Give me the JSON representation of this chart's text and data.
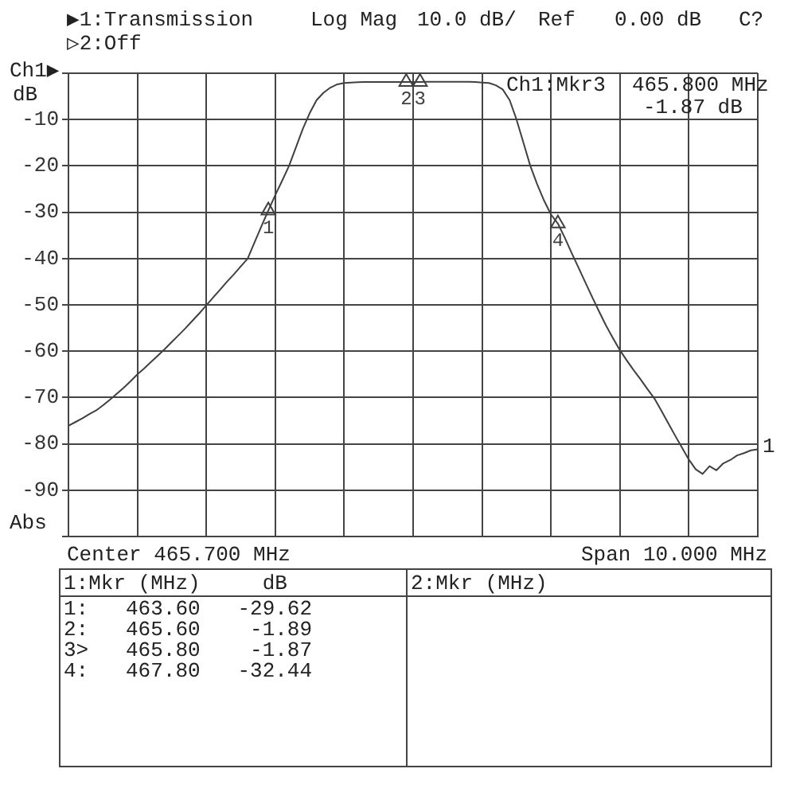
{
  "chart_data": {
    "type": "line",
    "annotations": [
      "▶1:Transmission",
      "Log Mag",
      "10.0 dB/",
      "Ref",
      "0.00 dB",
      "C?",
      "▷2:Off",
      "Ch1▶",
      "dB",
      "Ch1:Mkr3",
      "465.800 MHz",
      "-1.87 dB",
      "1",
      "Abs",
      "Center 465.700 MHz",
      "Span 10.000 MHz",
      "1:Mkr (MHz)     dB",
      "2:Mkr (MHz)",
      "1:   463.60   -29.62",
      "2:   465.60    -1.89",
      "3>   465.80    -1.87",
      "4:   467.80   -32.44"
    ],
    "categories": [
      null,
      null,
      null,
      null,
      null,
      null,
      null,
      null,
      null,
      null,
      null,
      null,
      null,
      null,
      null,
      null,
      null,
      null,
      null,
      null,
      null,
      null,
      null,
      null,
      null,
      null,
      null,
      null,
      null,
      null,
      null,
      null,
      null,
      null,
      null,
      null,
      null,
      null,
      null,
      null,
      null,
      null,
      null,
      null,
      null,
      null,
      null,
      null,
      null,
      null,
      null,
      null,
      null,
      null,
      null,
      null,
      null,
      null,
      null,
      null,
      null,
      null,
      null,
      null,
      null,
      null,
      null,
      null,
      null,
      null,
      null,
      null,
      null,
      null,
      null,
      null,
      null,
      null,
      null,
      null,
      null,
      null,
      null,
      null,
      null,
      null,
      null,
      null,
      null,
      null,
      null,
      null,
      null,
      null,
      null,
      null,
      null,
      null,
      null,
      null,
      null
    ],
    "ylim": [
      -100,
      0
    ],
    "yticks": [
      {
        "value": -100,
        "label": null
      },
      -90,
      -80,
      -70,
      -60,
      -50,
      -40,
      -30,
      -20,
      -10,
      {
        "value": 0,
        "label": null
      }
    ],
    "grid": true,
    "legend": false,
    "series": [
      {
        "color": "#404040",
        "line_style": "solid",
        "values": [
          -76.1,
          -75.3,
          -74.5,
          -73.6,
          -72.8,
          -71.7,
          -70.5,
          -69.2,
          -67.9,
          -66.5,
          -65,
          -63.7,
          -62.3,
          -60.9,
          -59.5,
          -58,
          -56.5,
          -55,
          -53.4,
          -51.8,
          -50.1,
          -48.4,
          -46.7,
          -45,
          -43.4,
          -41.7,
          -40,
          -36.5,
          -33,
          -29.62,
          -26.3,
          -23.2,
          -20,
          -16,
          -12,
          -8.6,
          -5.8,
          -4.2,
          -3.1,
          -2.4,
          -2.1,
          -2,
          -1.95,
          -1.9,
          -1.9,
          -1.9,
          -1.9,
          -1.9,
          -1.9,
          -1.89,
          -1.88,
          -1.87,
          -1.85,
          -1.85,
          -1.85,
          -1.85,
          -1.85,
          -1.85,
          -1.85,
          -1.9,
          -2,
          -2.1,
          -2.6,
          -3.5,
          -5.8,
          -10,
          -15,
          -20,
          -24,
          -27.5,
          -30.5,
          -32.44,
          -35.5,
          -38.8,
          -42,
          -45.2,
          -48.4,
          -51.5,
          -54.5,
          -57.2,
          -59.8,
          -62,
          -64.1,
          -66.1,
          -68.2,
          -70.2,
          -72.8,
          -75.5,
          -78.2,
          -80.8,
          -83.4,
          -85.5,
          -86.5,
          -84.8,
          -85.7,
          -84.2,
          -83.5,
          -82.5,
          -82,
          -81.4,
          -81.2
        ]
      },
      {
        "type": "scatter",
        "name": "1",
        "color": "#404040",
        "marker": "triangle",
        "values": [
          null,
          null,
          null,
          null,
          null,
          null,
          null,
          null,
          null,
          null,
          null,
          null,
          null,
          null,
          null,
          null,
          null,
          null,
          null,
          null,
          null,
          null,
          null,
          null,
          null,
          null,
          null,
          null,
          null,
          -29.62,
          null,
          null,
          null,
          null,
          null,
          null,
          null,
          null,
          null,
          null,
          null,
          null,
          null,
          null,
          null,
          null,
          null,
          null,
          null,
          null,
          null,
          null,
          null,
          null,
          null,
          null,
          null,
          null,
          null,
          null,
          null,
          null,
          null,
          null,
          null,
          null,
          null,
          null,
          null,
          null,
          null,
          null,
          null,
          null,
          null,
          null,
          null,
          null,
          null,
          null,
          null,
          null,
          null,
          null,
          null,
          null,
          null,
          null,
          null,
          null,
          null,
          null,
          null,
          null,
          null,
          null,
          null,
          null,
          null,
          null,
          null
        ]
      },
      {
        "type": "scatter",
        "name": "2",
        "color": "#404040",
        "marker": "triangle",
        "values": [
          null,
          null,
          null,
          null,
          null,
          null,
          null,
          null,
          null,
          null,
          null,
          null,
          null,
          null,
          null,
          null,
          null,
          null,
          null,
          null,
          null,
          null,
          null,
          null,
          null,
          null,
          null,
          null,
          null,
          null,
          null,
          null,
          null,
          null,
          null,
          null,
          null,
          null,
          null,
          null,
          null,
          null,
          null,
          null,
          null,
          null,
          null,
          null,
          null,
          -1.89,
          null,
          null,
          null,
          null,
          null,
          null,
          null,
          null,
          null,
          null,
          null,
          null,
          null,
          null,
          null,
          null,
          null,
          null,
          null,
          null,
          null,
          null,
          null,
          null,
          null,
          null,
          null,
          null,
          null,
          null,
          null,
          null,
          null,
          null,
          null,
          null,
          null,
          null,
          null,
          null,
          null,
          null,
          null,
          null,
          null,
          null,
          null,
          null,
          null,
          null,
          null
        ]
      },
      {
        "type": "scatter",
        "name": "3",
        "color": "#404040",
        "marker": "triangle",
        "values": [
          null,
          null,
          null,
          null,
          null,
          null,
          null,
          null,
          null,
          null,
          null,
          null,
          null,
          null,
          null,
          null,
          null,
          null,
          null,
          null,
          null,
          null,
          null,
          null,
          null,
          null,
          null,
          null,
          null,
          null,
          null,
          null,
          null,
          null,
          null,
          null,
          null,
          null,
          null,
          null,
          null,
          null,
          null,
          null,
          null,
          null,
          null,
          null,
          null,
          null,
          null,
          -1.87,
          null,
          null,
          null,
          null,
          null,
          null,
          null,
          null,
          null,
          null,
          null,
          null,
          null,
          null,
          null,
          null,
          null,
          null,
          null,
          null,
          null,
          null,
          null,
          null,
          null,
          null,
          null,
          null,
          null,
          null,
          null,
          null,
          null,
          null,
          null,
          null,
          null,
          null,
          null,
          null,
          null,
          null,
          null,
          null,
          null,
          null,
          null,
          null,
          null
        ]
      },
      {
        "type": "scatter",
        "name": "4",
        "color": "#404040",
        "marker": "triangle",
        "values": [
          null,
          null,
          null,
          null,
          null,
          null,
          null,
          null,
          null,
          null,
          null,
          null,
          null,
          null,
          null,
          null,
          null,
          null,
          null,
          null,
          null,
          null,
          null,
          null,
          null,
          null,
          null,
          null,
          null,
          null,
          null,
          null,
          null,
          null,
          null,
          null,
          null,
          null,
          null,
          null,
          null,
          null,
          null,
          null,
          null,
          null,
          null,
          null,
          null,
          null,
          null,
          null,
          null,
          null,
          null,
          null,
          null,
          null,
          null,
          null,
          null,
          null,
          null,
          null,
          null,
          null,
          null,
          null,
          null,
          null,
          null,
          -32.44,
          null,
          null,
          null,
          null,
          null,
          null,
          null,
          null,
          null,
          null,
          null,
          null,
          null,
          null,
          null,
          null,
          null,
          null,
          null,
          null,
          null,
          null,
          null,
          null,
          null,
          null,
          null,
          null,
          null
        ]
      }
    ]
  }
}
